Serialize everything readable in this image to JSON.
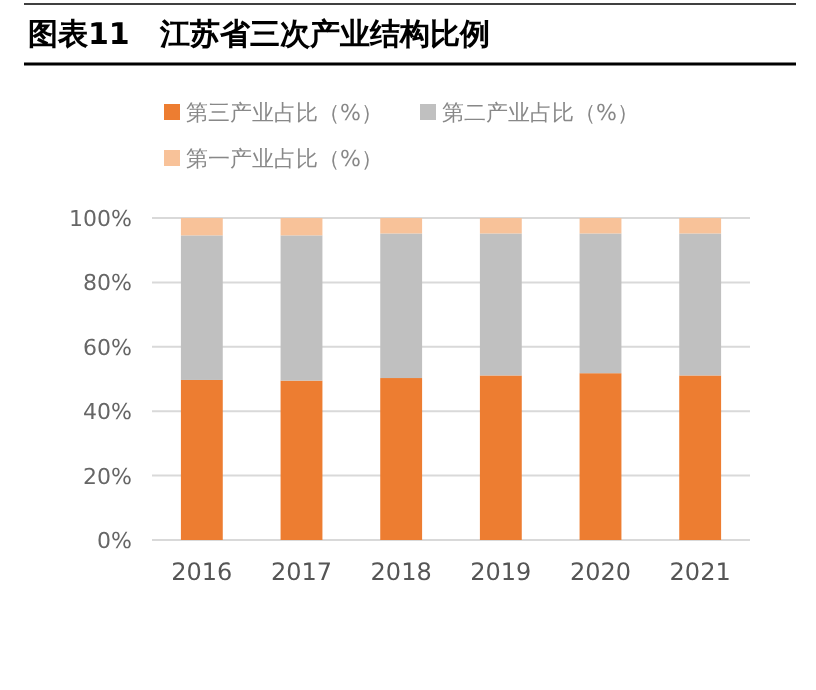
{
  "chart_data": {
    "type": "bar",
    "title": "图表11　江苏省三次产业结构比例",
    "stacked": true,
    "grid": "y",
    "legend": "top",
    "categories": [
      "2016",
      "2017",
      "2018",
      "2019",
      "2020",
      "2021"
    ],
    "ylim": [
      0,
      100
    ],
    "yticks": [
      {
        "value": 0,
        "label": "0%"
      },
      {
        "value": 20,
        "label": "20%"
      },
      {
        "value": 40,
        "label": "40%"
      },
      {
        "value": 60,
        "label": "60%"
      },
      {
        "value": 80,
        "label": "80%"
      },
      {
        "value": 100,
        "label": "100%"
      }
    ],
    "series": [
      {
        "name": "第三产业占比（%）",
        "color": "#ed7d31",
        "values": [
          49.7,
          49.5,
          50.3,
          51.1,
          51.8,
          51.1
        ]
      },
      {
        "name": "第二产业占比（%）",
        "color": "#c0c0c0",
        "values": [
          44.9,
          45.1,
          44.9,
          44.1,
          43.4,
          44.1
        ]
      },
      {
        "name": "第一产业占比（%）",
        "color": "#f8c299",
        "values": [
          5.4,
          5.4,
          4.8,
          4.8,
          4.8,
          4.8
        ]
      }
    ]
  }
}
